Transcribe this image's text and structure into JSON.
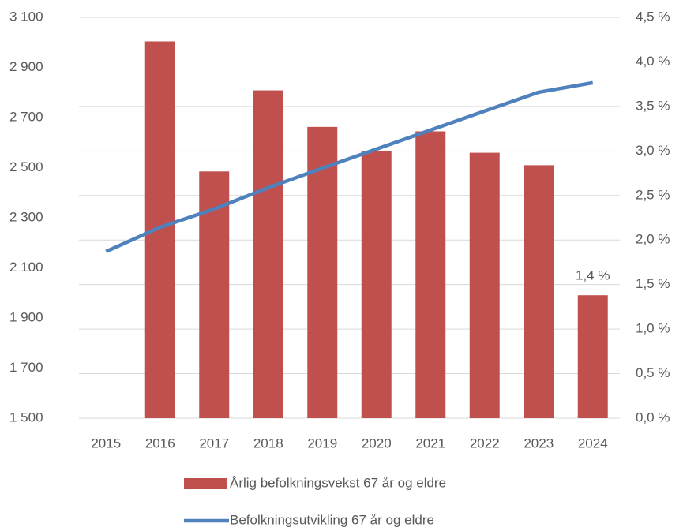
{
  "chart_data": {
    "type": "bar_line",
    "categories": [
      "2015",
      "2016",
      "2017",
      "2018",
      "2019",
      "2020",
      "2021",
      "2022",
      "2023",
      "2024"
    ],
    "series": [
      {
        "name": "Årlig befolkningsvekst 67 år og eldre",
        "type": "bar",
        "axis": "y2",
        "color": "#c0504d",
        "values": [
          null,
          4.23,
          2.77,
          3.68,
          3.27,
          3.0,
          3.22,
          2.98,
          2.84,
          1.38
        ],
        "value_labels": [
          null,
          null,
          null,
          null,
          null,
          null,
          null,
          null,
          null,
          "1,4 %"
        ]
      },
      {
        "name": "Befolkningsutvikling 67 år og eldre",
        "type": "line",
        "axis": "y",
        "color": "#4f81bd",
        "values": [
          2165,
          2262,
          2335,
          2420,
          2498,
          2574,
          2650,
          2726,
          2801,
          2839
        ]
      }
    ],
    "ylim": [
      1500,
      3100
    ],
    "yticks": [
      {
        "value": 1500,
        "label": "1 500"
      },
      {
        "value": 1700,
        "label": "1 700"
      },
      {
        "value": 1900,
        "label": "1 900"
      },
      {
        "value": 2100,
        "label": "2 100"
      },
      {
        "value": 2300,
        "label": "2 300"
      },
      {
        "value": 2500,
        "label": "2 500"
      },
      {
        "value": 2700,
        "label": "2 700"
      },
      {
        "value": 2900,
        "label": "2 900"
      },
      {
        "value": 3100,
        "label": "3 100"
      }
    ],
    "y2lim": [
      0,
      4.5
    ],
    "y2ticks": [
      {
        "value": 0,
        "label": "0,0 %"
      },
      {
        "value": 0.5,
        "label": "0,5 %"
      },
      {
        "value": 1.0,
        "label": "1,0 %"
      },
      {
        "value": 1.5,
        "label": "1,5 %"
      },
      {
        "value": 2.0,
        "label": "2,0 %"
      },
      {
        "value": 2.5,
        "label": "2,5 %"
      },
      {
        "value": 3.0,
        "label": "3,0 %"
      },
      {
        "value": 3.5,
        "label": "3,5 %"
      },
      {
        "value": 4.0,
        "label": "4,0 %"
      },
      {
        "value": 4.5,
        "label": "4,5 %"
      }
    ],
    "grid": true
  }
}
